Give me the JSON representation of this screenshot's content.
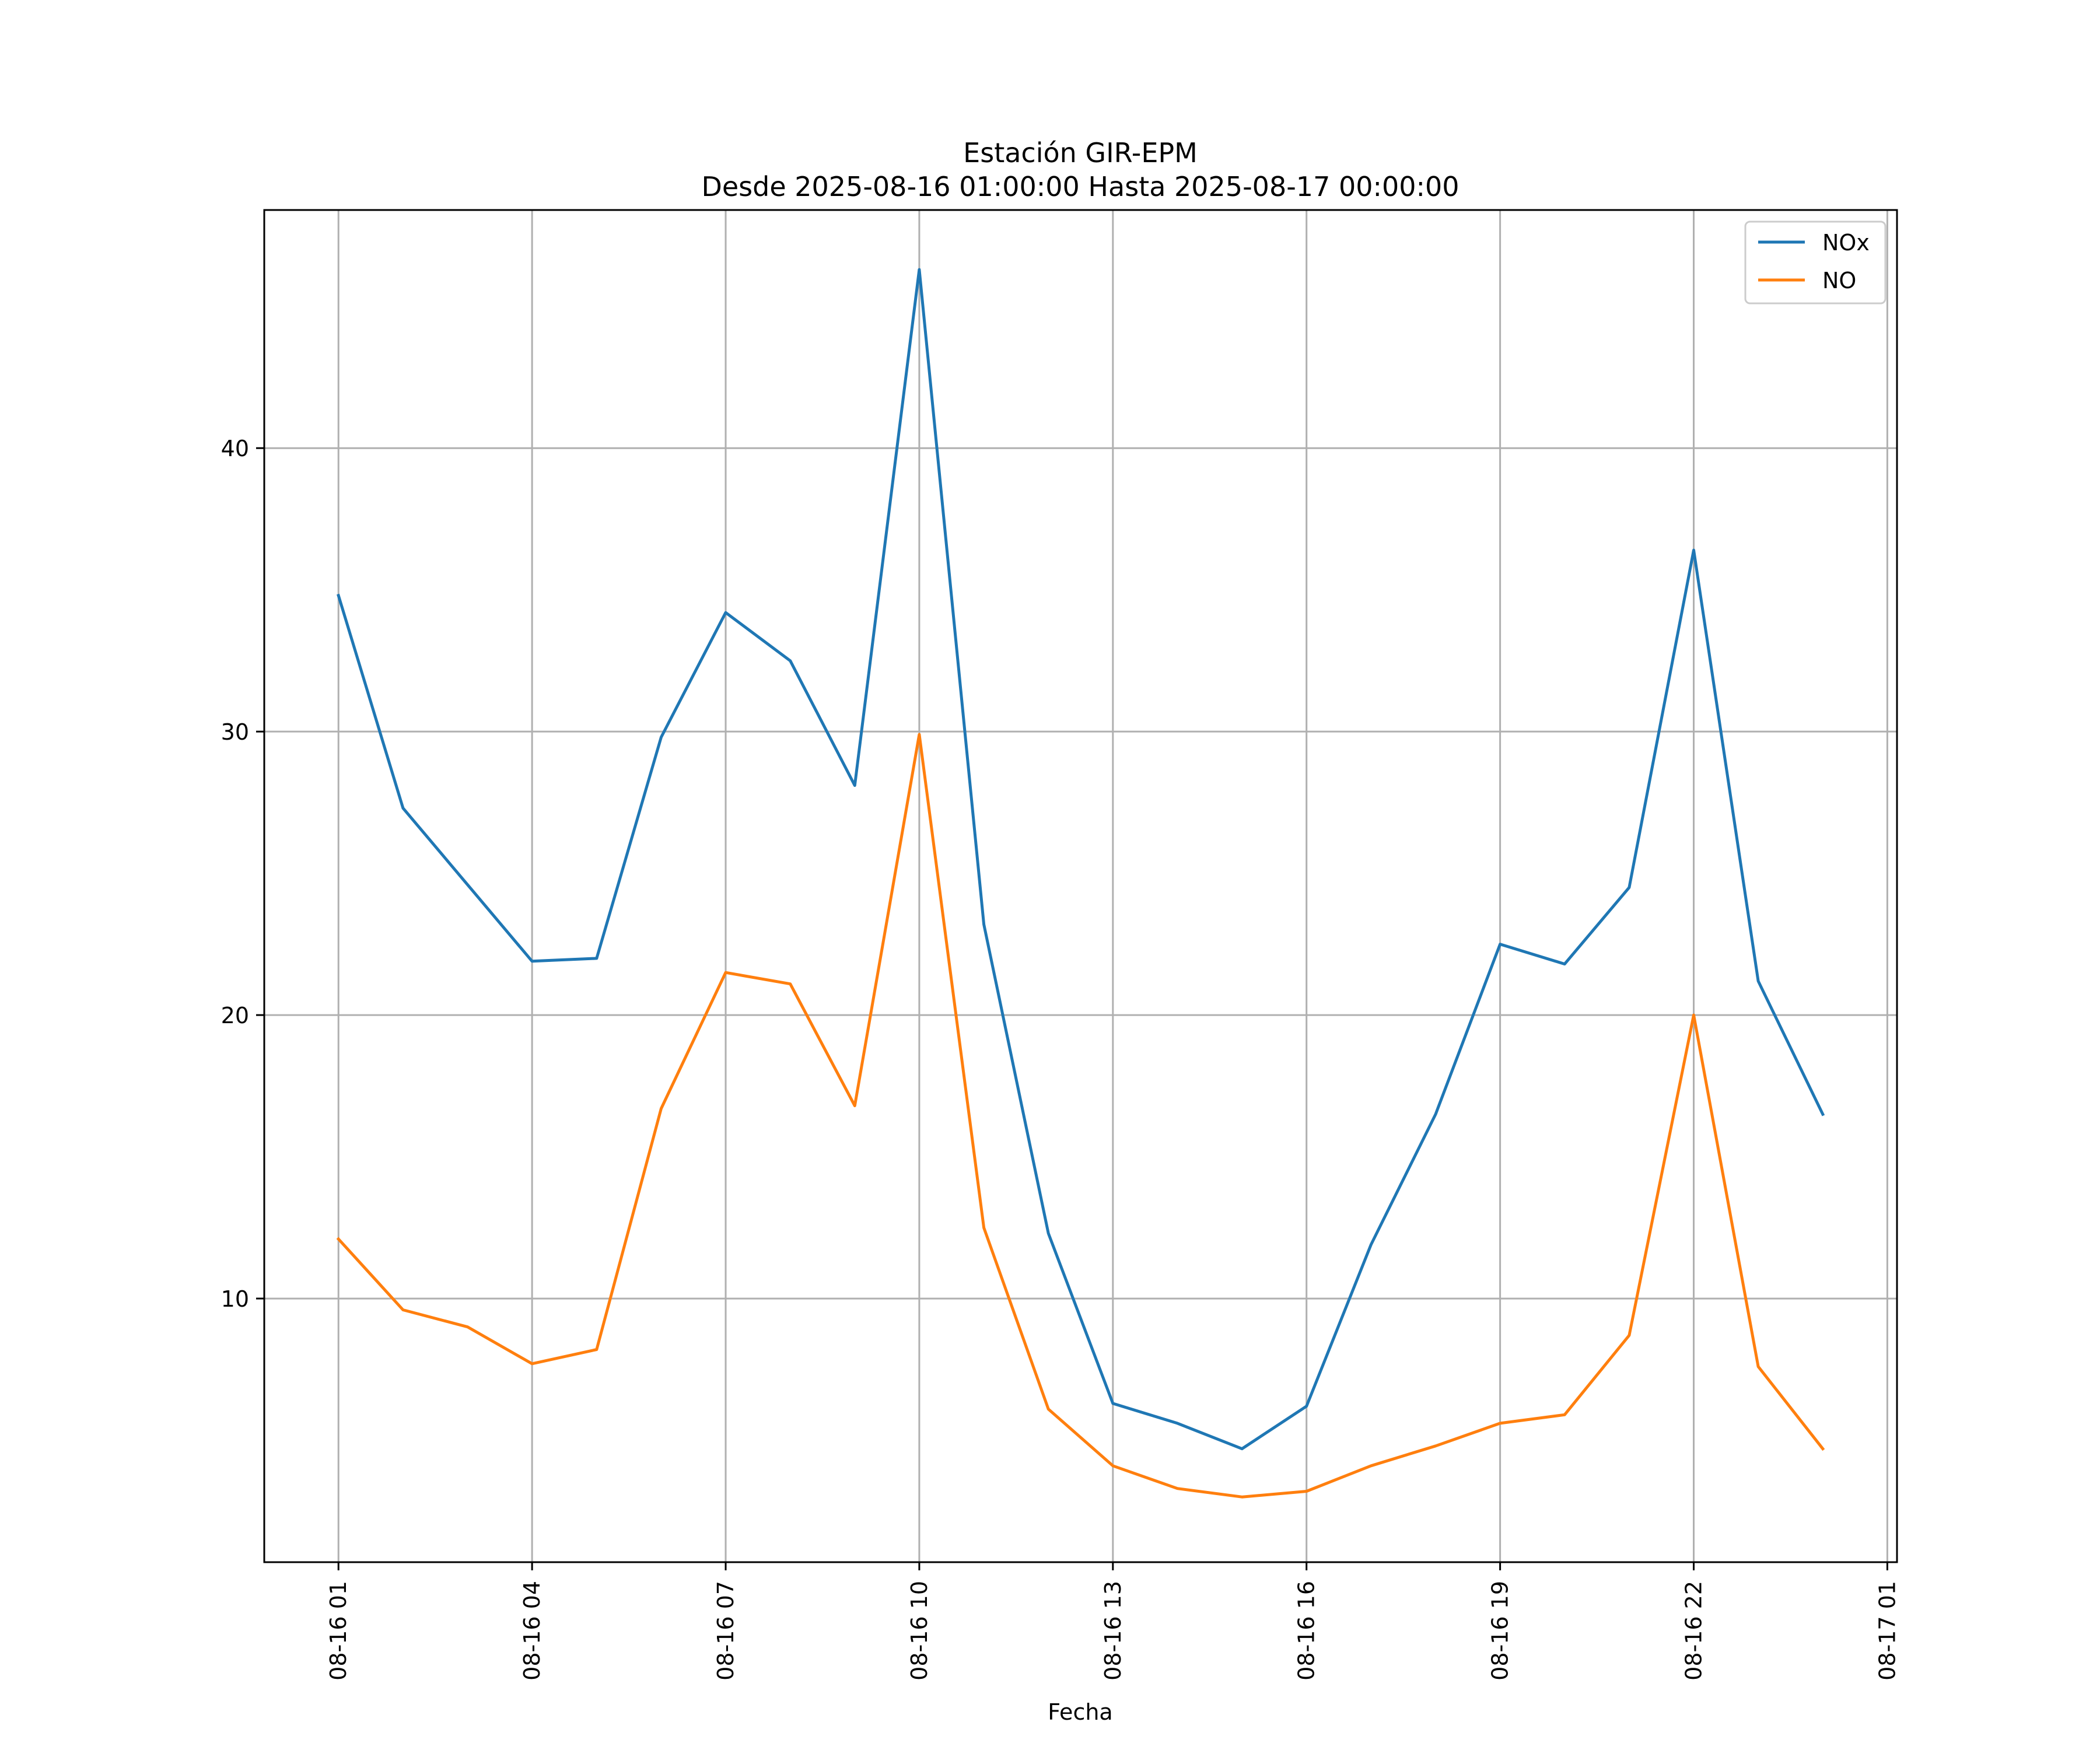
{
  "chart_data": {
    "type": "line",
    "title": "Estación GIR-EPM",
    "subtitle": "Desde 2025-08-16 01:00:00 Hasta 2025-08-17 00:00:00",
    "xlabel": "Fecha",
    "ylabel": "",
    "x": [
      "2025-08-16 01:00",
      "2025-08-16 02:00",
      "2025-08-16 03:00",
      "2025-08-16 04:00",
      "2025-08-16 05:00",
      "2025-08-16 06:00",
      "2025-08-16 07:00",
      "2025-08-16 08:00",
      "2025-08-16 09:00",
      "2025-08-16 10:00",
      "2025-08-16 11:00",
      "2025-08-16 12:00",
      "2025-08-16 13:00",
      "2025-08-16 14:00",
      "2025-08-16 15:00",
      "2025-08-16 16:00",
      "2025-08-16 17:00",
      "2025-08-16 18:00",
      "2025-08-16 19:00",
      "2025-08-16 20:00",
      "2025-08-16 21:00",
      "2025-08-16 22:00",
      "2025-08-16 23:00",
      "2025-08-17 00:00"
    ],
    "xlim": [
      "2025-08-15 23:51",
      "2025-08-17 01:09"
    ],
    "x_ticks": [
      "2025-08-16 01:00",
      "2025-08-16 04:00",
      "2025-08-16 07:00",
      "2025-08-16 10:00",
      "2025-08-16 13:00",
      "2025-08-16 16:00",
      "2025-08-16 19:00",
      "2025-08-16 22:00",
      "2025-08-17 01:00"
    ],
    "x_tick_labels": [
      "08-16 01",
      "08-16 04",
      "08-16 07",
      "08-16 10",
      "08-16 13",
      "08-16 16",
      "08-16 19",
      "08-16 22",
      "08-17 01"
    ],
    "ylim": [
      0.7,
      48.4
    ],
    "y_ticks": [
      10,
      20,
      30,
      40
    ],
    "y_tick_labels": [
      "10",
      "20",
      "30",
      "40"
    ],
    "grid": true,
    "legend_position": "top-right",
    "series": [
      {
        "name": "NOx",
        "color": "#1f77b4",
        "values": [
          34.8,
          27.3,
          24.6,
          21.9,
          22.0,
          29.8,
          34.2,
          32.5,
          28.1,
          46.3,
          23.2,
          12.3,
          6.3,
          5.6,
          4.7,
          6.2,
          11.9,
          16.5,
          22.5,
          21.8,
          24.5,
          36.4,
          21.2,
          16.5
        ]
      },
      {
        "name": "NO",
        "color": "#ff7f0e",
        "values": [
          12.1,
          9.6,
          9.0,
          7.7,
          8.2,
          16.7,
          21.5,
          21.1,
          16.8,
          29.9,
          12.5,
          6.1,
          4.1,
          3.3,
          3.0,
          3.2,
          4.1,
          4.8,
          5.6,
          5.9,
          8.7,
          20.0,
          7.6,
          4.7
        ]
      }
    ]
  }
}
